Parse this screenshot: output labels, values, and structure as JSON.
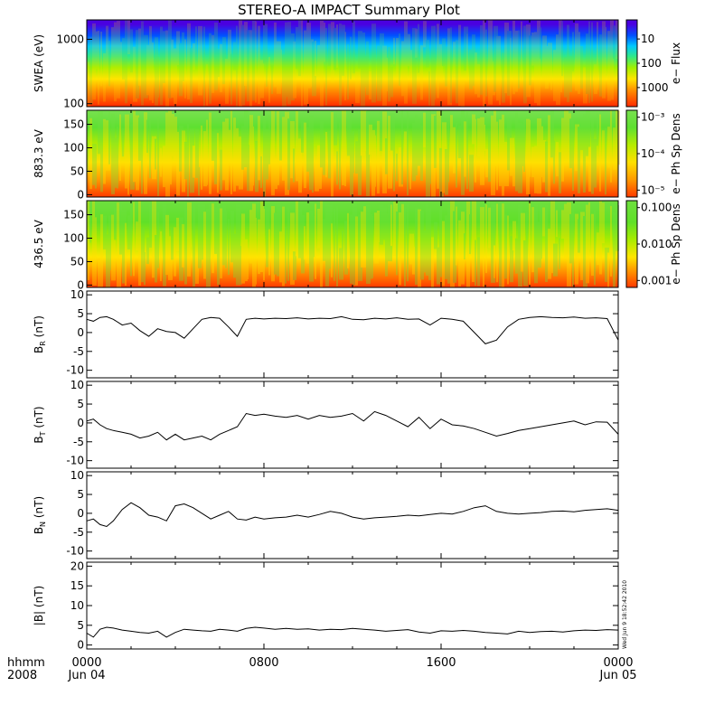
{
  "title": "STEREO-A IMPACT Summary Plot",
  "footer": {
    "hhmm": "hhmm",
    "year": "2008",
    "x_ticks": [
      "0000",
      "0800",
      "1600",
      "0000"
    ],
    "x_subticks": [
      "Jun 04",
      "",
      "",
      "Jun 05"
    ],
    "timestamp": "Wed Jun  9 18:52:42 2010"
  },
  "colors": {
    "line": "#000000",
    "background": "#ffffff"
  },
  "chart_data": [
    {
      "type": "heatmap",
      "ylabel": "SWEA (eV)",
      "yscale": "log",
      "ylim": [
        90,
        2000
      ],
      "y_ticks": [
        "100",
        "1000"
      ],
      "colorbar": {
        "label": "e− Flux",
        "scale": "log",
        "range": [
          3,
          5000
        ],
        "ticks": [
          "10",
          "100",
          "1000"
        ]
      },
      "colormap_stops": [
        {
          "value": 0.0,
          "color": "#ff2a00"
        },
        {
          "value": 0.18,
          "color": "#ff8a00"
        },
        {
          "value": 0.32,
          "color": "#ffe600"
        },
        {
          "value": 0.45,
          "color": "#a0f000"
        },
        {
          "value": 0.58,
          "color": "#2ee88a"
        },
        {
          "value": 0.7,
          "color": "#00c8ff"
        },
        {
          "value": 0.82,
          "color": "#0050ff"
        },
        {
          "value": 0.95,
          "color": "#4a00e0"
        }
      ]
    },
    {
      "type": "heatmap",
      "ylabel": "883.3 eV",
      "ylim": [
        -5,
        180
      ],
      "y_ticks": [
        "0",
        "50",
        "100",
        "150"
      ],
      "colorbar": {
        "label": "e− Ph Sp Dens",
        "scale": "log",
        "ticks": [
          "10⁻³",
          "10⁻⁴",
          "10⁻⁵"
        ]
      },
      "colormap_stops": [
        {
          "value": 0.0,
          "color": "#ff3a00"
        },
        {
          "value": 0.2,
          "color": "#ff9a00"
        },
        {
          "value": 0.4,
          "color": "#ffe000"
        },
        {
          "value": 0.6,
          "color": "#b6ec00"
        },
        {
          "value": 0.8,
          "color": "#5ee030"
        },
        {
          "value": 1.0,
          "color": "#78e050"
        }
      ]
    },
    {
      "type": "heatmap",
      "ylabel": "436.5 eV",
      "ylim": [
        -5,
        180
      ],
      "y_ticks": [
        "0",
        "50",
        "100",
        "150"
      ],
      "colorbar": {
        "label": "e− Ph Sp Dens",
        "scale": "log",
        "ticks": [
          "0.100",
          "0.010",
          "0.001"
        ]
      },
      "colormap_stops": [
        {
          "value": 0.0,
          "color": "#ff3a00"
        },
        {
          "value": 0.2,
          "color": "#ff9a00"
        },
        {
          "value": 0.35,
          "color": "#ffe600"
        },
        {
          "value": 0.55,
          "color": "#a8ec00"
        },
        {
          "value": 0.75,
          "color": "#60e028"
        },
        {
          "value": 1.0,
          "color": "#6ee040"
        }
      ]
    },
    {
      "type": "line",
      "ylabel": "B_R (nT)",
      "ylabel_main": "B",
      "ylabel_sub": "R",
      "ylabel_unit": " (nT)",
      "ylim": [
        -12,
        11
      ],
      "y_ticks": [
        10,
        5,
        0,
        -5,
        -10
      ],
      "xlim": [
        0,
        24
      ],
      "x": [
        0,
        0.3,
        0.6,
        0.9,
        1.2,
        1.6,
        2.0,
        2.4,
        2.8,
        3.2,
        3.6,
        4.0,
        4.4,
        4.8,
        5.2,
        5.6,
        6.0,
        6.4,
        6.8,
        7.2,
        7.6,
        8.0,
        8.5,
        9.0,
        9.5,
        10.0,
        10.5,
        11.0,
        11.5,
        12.0,
        12.5,
        13.0,
        13.5,
        14.0,
        14.5,
        15.0,
        15.5,
        16.0,
        16.5,
        17.0,
        17.5,
        18.0,
        18.5,
        19.0,
        19.5,
        20.0,
        20.5,
        21.0,
        21.5,
        22.0,
        22.5,
        23.0,
        23.5,
        24.0
      ],
      "values": [
        3.5,
        3.0,
        4.0,
        4.2,
        3.5,
        2.0,
        2.5,
        0.5,
        -1.0,
        1.0,
        0.3,
        0.0,
        -1.5,
        1.0,
        3.5,
        4.0,
        3.8,
        1.5,
        -1.0,
        3.5,
        3.8,
        3.6,
        3.8,
        3.7,
        3.9,
        3.6,
        3.8,
        3.7,
        4.2,
        3.5,
        3.4,
        3.8,
        3.6,
        3.9,
        3.5,
        3.6,
        2.0,
        3.8,
        3.5,
        3.0,
        0.0,
        -3.0,
        -2.0,
        1.5,
        3.5,
        4.0,
        4.2,
        4.0,
        3.9,
        4.1,
        3.8,
        3.9,
        3.7,
        -2.0
      ]
    },
    {
      "type": "line",
      "ylabel": "B_T (nT)",
      "ylabel_main": "B",
      "ylabel_sub": "T",
      "ylabel_unit": " (nT)",
      "ylim": [
        -12,
        11
      ],
      "y_ticks": [
        10,
        5,
        0,
        -5,
        -10
      ],
      "xlim": [
        0,
        24
      ],
      "x": [
        0,
        0.3,
        0.6,
        0.9,
        1.2,
        1.6,
        2.0,
        2.4,
        2.8,
        3.2,
        3.6,
        4.0,
        4.4,
        4.8,
        5.2,
        5.6,
        6.0,
        6.4,
        6.8,
        7.2,
        7.6,
        8.0,
        8.5,
        9.0,
        9.5,
        10.0,
        10.5,
        11.0,
        11.5,
        12.0,
        12.5,
        13.0,
        13.5,
        14.0,
        14.5,
        15.0,
        15.5,
        16.0,
        16.5,
        17.0,
        17.5,
        18.0,
        18.5,
        19.0,
        19.5,
        20.0,
        20.5,
        21.0,
        21.5,
        22.0,
        22.5,
        23.0,
        23.5,
        24.0
      ],
      "values": [
        0.5,
        1.0,
        -0.5,
        -1.5,
        -2.0,
        -2.5,
        -3.0,
        -4.0,
        -3.5,
        -2.5,
        -4.5,
        -3.0,
        -4.5,
        -4.0,
        -3.5,
        -4.5,
        -3.0,
        -2.0,
        -1.0,
        2.5,
        2.0,
        2.3,
        1.8,
        1.5,
        2.0,
        1.0,
        2.0,
        1.5,
        1.8,
        2.5,
        0.5,
        3.0,
        2.0,
        0.5,
        -1.0,
        1.5,
        -1.5,
        1.0,
        -0.5,
        -0.8,
        -1.5,
        -2.5,
        -3.5,
        -2.8,
        -2.0,
        -1.5,
        -1.0,
        -0.5,
        0.0,
        0.5,
        -0.5,
        0.3,
        0.2,
        -3.0
      ]
    },
    {
      "type": "line",
      "ylabel": "B_N (nT)",
      "ylabel_main": "B",
      "ylabel_sub": "N",
      "ylabel_unit": " (nT)",
      "ylim": [
        -12,
        11
      ],
      "y_ticks": [
        10,
        5,
        0,
        -5,
        -10
      ],
      "xlim": [
        0,
        24
      ],
      "x": [
        0,
        0.3,
        0.6,
        0.9,
        1.2,
        1.6,
        2.0,
        2.4,
        2.8,
        3.2,
        3.6,
        4.0,
        4.4,
        4.8,
        5.2,
        5.6,
        6.0,
        6.4,
        6.8,
        7.2,
        7.6,
        8.0,
        8.5,
        9.0,
        9.5,
        10.0,
        10.5,
        11.0,
        11.5,
        12.0,
        12.5,
        13.0,
        13.5,
        14.0,
        14.5,
        15.0,
        15.5,
        16.0,
        16.5,
        17.0,
        17.5,
        18.0,
        18.5,
        19.0,
        19.5,
        20.0,
        20.5,
        21.0,
        21.5,
        22.0,
        22.5,
        23.0,
        23.5,
        24.0
      ],
      "values": [
        -2.0,
        -1.5,
        -3.0,
        -3.5,
        -2.0,
        1.0,
        2.8,
        1.5,
        -0.5,
        -1.0,
        -2.0,
        2.0,
        2.5,
        1.5,
        0.0,
        -1.5,
        -0.5,
        0.5,
        -1.5,
        -1.8,
        -1.0,
        -1.5,
        -1.2,
        -1.0,
        -0.5,
        -1.0,
        -0.3,
        0.5,
        0.0,
        -1.0,
        -1.5,
        -1.2,
        -1.0,
        -0.8,
        -0.5,
        -0.7,
        -0.3,
        0.0,
        -0.2,
        0.5,
        1.5,
        2.0,
        0.5,
        0.0,
        -0.2,
        0.0,
        0.2,
        0.5,
        0.6,
        0.4,
        0.8,
        1.0,
        1.2,
        0.8
      ]
    },
    {
      "type": "line",
      "ylabel": "|B| (nT)",
      "ylabel_main": "|B|",
      "ylabel_sub": "",
      "ylabel_unit": " (nT)",
      "ylim": [
        -1,
        21
      ],
      "y_ticks": [
        20,
        15,
        10,
        5,
        0
      ],
      "xlim": [
        0,
        24
      ],
      "x": [
        0,
        0.3,
        0.6,
        0.9,
        1.2,
        1.6,
        2.0,
        2.4,
        2.8,
        3.2,
        3.6,
        4.0,
        4.4,
        4.8,
        5.2,
        5.6,
        6.0,
        6.4,
        6.8,
        7.2,
        7.6,
        8.0,
        8.5,
        9.0,
        9.5,
        10.0,
        10.5,
        11.0,
        11.5,
        12.0,
        12.5,
        13.0,
        13.5,
        14.0,
        14.5,
        15.0,
        15.5,
        16.0,
        16.5,
        17.0,
        17.5,
        18.0,
        18.5,
        19.0,
        19.5,
        20.0,
        20.5,
        21.0,
        21.5,
        22.0,
        22.5,
        23.0,
        23.5,
        24.0
      ],
      "values": [
        3.0,
        2.0,
        4.0,
        4.5,
        4.3,
        3.8,
        3.5,
        3.2,
        3.0,
        3.5,
        2.0,
        3.2,
        4.0,
        3.8,
        3.6,
        3.5,
        4.0,
        3.8,
        3.5,
        4.2,
        4.5,
        4.3,
        4.0,
        4.2,
        4.0,
        4.1,
        3.8,
        4.0,
        3.9,
        4.2,
        4.0,
        3.8,
        3.5,
        3.7,
        3.9,
        3.3,
        3.0,
        3.6,
        3.5,
        3.7,
        3.5,
        3.2,
        3.0,
        2.8,
        3.5,
        3.2,
        3.4,
        3.5,
        3.3,
        3.6,
        3.8,
        3.7,
        3.9,
        3.8
      ]
    }
  ]
}
